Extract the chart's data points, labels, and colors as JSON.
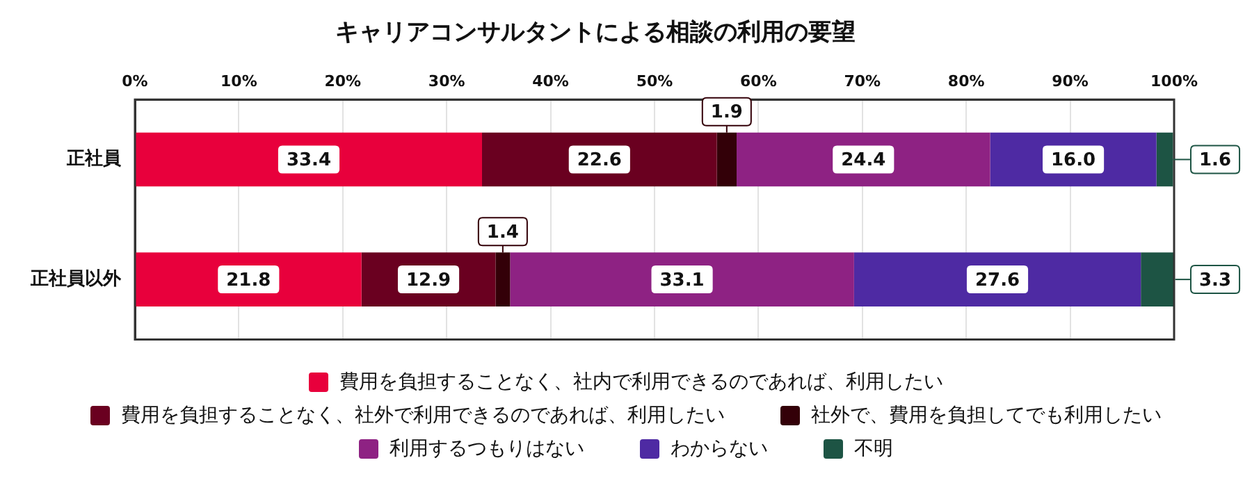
{
  "chart_data": {
    "type": "bar",
    "orientation": "horizontal",
    "stacked": true,
    "title": "キャリアコンサルタントによる相談の利用の要望",
    "categories": [
      "正社員",
      "正社員以外"
    ],
    "series": [
      {
        "name": "費用を負担することなく、社内で利用できるのであれば、利用したい",
        "color": "#e8003c",
        "values": [
          33.4,
          21.8
        ],
        "value_labels": [
          "33.4",
          "21.8"
        ]
      },
      {
        "name": "費用を負担することなく、社外で利用できるのであれば、利用したい",
        "color": "#6a0020",
        "values": [
          22.6,
          12.9
        ],
        "value_labels": [
          "22.6",
          "12.9"
        ]
      },
      {
        "name": "社外で、費用を負担してでも利用したい",
        "color": "#330008",
        "values": [
          1.9,
          1.4
        ],
        "value_labels": [
          "1.9",
          "1.4"
        ]
      },
      {
        "name": "利用するつもりはない",
        "color": "#8e2283",
        "values": [
          24.4,
          33.1
        ],
        "value_labels": [
          "24.4",
          "33.1"
        ]
      },
      {
        "name": "わからない",
        "color": "#4e2aa3",
        "values": [
          16.0,
          27.6
        ],
        "value_labels": [
          "16.0",
          "27.6"
        ]
      },
      {
        "name": "不明",
        "color": "#1d5444",
        "values": [
          1.6,
          3.3
        ],
        "value_labels": [
          "1.6",
          "3.3"
        ]
      }
    ],
    "xlim": [
      0,
      100
    ],
    "xticks": [
      {
        "value": 0,
        "label": "0%"
      },
      {
        "value": 10,
        "label": "10%"
      },
      {
        "value": 20,
        "label": "20%"
      },
      {
        "value": 30,
        "label": "30%"
      },
      {
        "value": 40,
        "label": "40%"
      },
      {
        "value": 50,
        "label": "50%"
      },
      {
        "value": 60,
        "label": "60%"
      },
      {
        "value": 70,
        "label": "70%"
      },
      {
        "value": 80,
        "label": "80%"
      },
      {
        "value": 90,
        "label": "90%"
      },
      {
        "value": 100,
        "label": "100%"
      }
    ],
    "grid": "x",
    "legend": "bottom"
  }
}
